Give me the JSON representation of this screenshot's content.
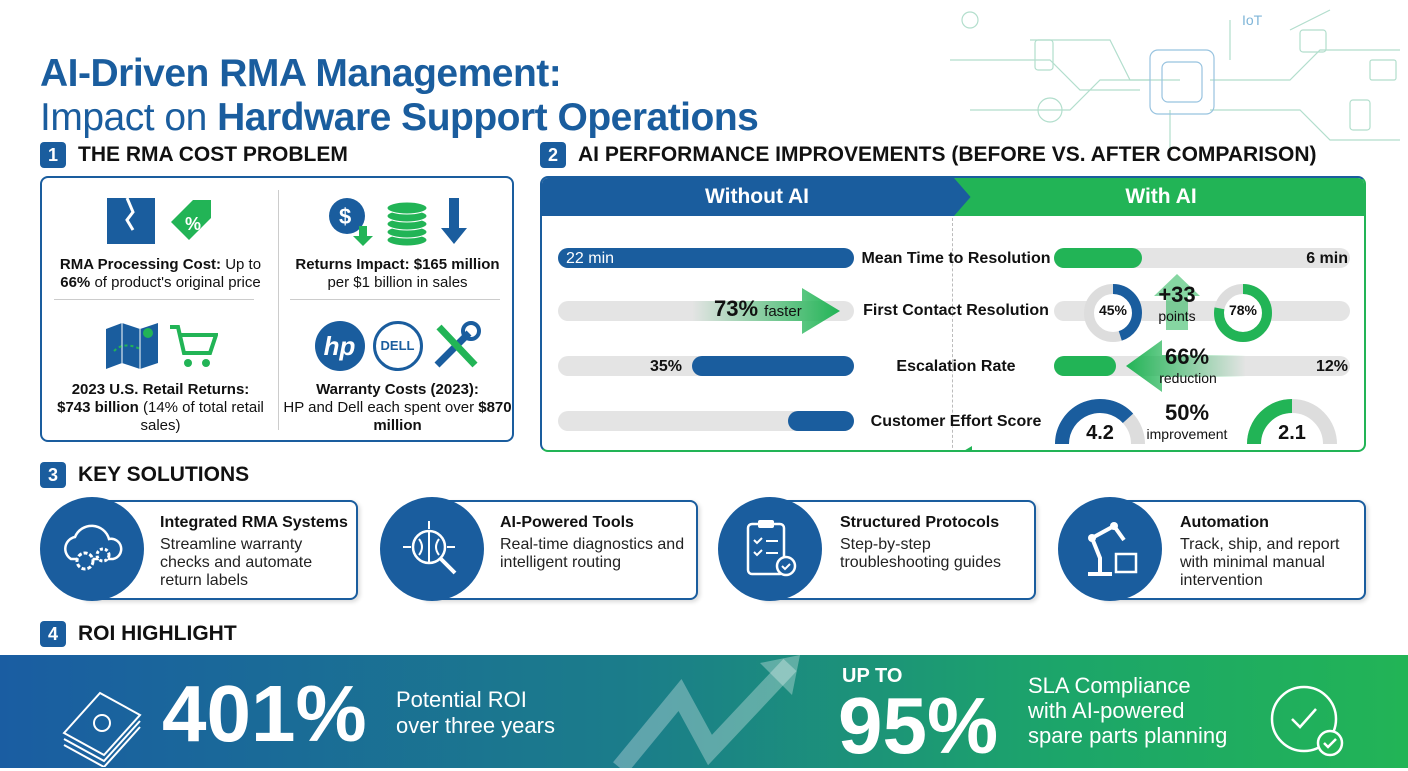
{
  "title": {
    "line1": "AI-Driven RMA Management:",
    "line2_light": "Impact on ",
    "line2_bold": "Hardware Support Operations"
  },
  "sections": {
    "s1": {
      "num": "1",
      "title": "THE RMA COST PROBLEM",
      "cells": [
        {
          "bold1": "RMA Processing Cost:",
          "text1": " Up to",
          "bold2": "66%",
          "text2": " of product's original price",
          "icons": [
            "broken-box-icon",
            "price-tag-icon"
          ]
        },
        {
          "bold1": "Returns Impact: $165 million",
          "text1": "",
          "bold2": "",
          "text2": "per $1 billion in sales",
          "icons": [
            "dollar-down-icon",
            "coin-stack-icon",
            "arrow-down-icon"
          ]
        },
        {
          "bold1": "2023 U.S. Retail Returns:",
          "text1": "",
          "bold2": "$743 billion",
          "text2": " (14% of total retail sales)",
          "icons": [
            "map-icon",
            "shopping-cart-icon"
          ]
        },
        {
          "bold1": "Warranty Costs (2023):",
          "text1": "",
          "bold2": "",
          "text2": "HP and Dell each spent over ",
          "bold3": "$870 million",
          "icons": [
            "hp-logo",
            "dell-logo",
            "tools-icon"
          ],
          "logos": [
            "hp",
            "DELL"
          ]
        }
      ]
    },
    "s2": {
      "num": "2",
      "title": "AI PERFORMANCE IMPROVEMENTS (BEFORE VS. AFTER COMPARISON)",
      "without": "Without AI",
      "with": "With AI",
      "rows": [
        {
          "metric": "Mean Time to Resolution",
          "before": "22 min",
          "after": "6 min",
          "before_value": 22,
          "after_value": 6
        },
        {
          "metric": "First Contact Resolution",
          "before": "45%",
          "after": "78%",
          "before_value": 45,
          "after_value": 78,
          "change": "+33",
          "change_unit": "points",
          "note": "73%",
          "note_unit": "faster"
        },
        {
          "metric": "Escalation Rate",
          "before": "35%",
          "after": "12%",
          "before_value": 35,
          "after_value": 12,
          "change": "66%",
          "change_unit": "reduction"
        },
        {
          "metric": "Customer Effort Score",
          "before": "4.2",
          "after": "2.1",
          "before_value": 4.2,
          "after_value": 2.1,
          "change": "50%",
          "change_unit": "improvement"
        }
      ],
      "colors": {
        "before": "#1a5d9e",
        "after": "#22b456"
      }
    },
    "s3": {
      "num": "3",
      "title": "KEY SOLUTIONS",
      "items": [
        {
          "title": "Integrated RMA Systems",
          "desc": "Streamline warranty checks and automate return labels",
          "icon": "cloud-gears-icon"
        },
        {
          "title": "AI-Powered Tools",
          "desc": "Real-time diagnostics and intelligent routing",
          "icon": "brain-chip-icon"
        },
        {
          "title": "Structured Protocols",
          "desc": "Step-by-step troubleshooting guides",
          "icon": "clipboard-checklist-icon"
        },
        {
          "title": "Automation",
          "desc": "Track, ship, and report with minimal manual intervention",
          "icon": "robot-arm-icon"
        }
      ]
    },
    "s4": {
      "num": "4",
      "title": "ROI HIGHLIGHT",
      "roi": "401%",
      "roi_desc1": "Potential ROI",
      "roi_desc2": "over three years",
      "upto": "UP TO",
      "sla": "95%",
      "sla_desc1": "SLA Compliance",
      "sla_desc2": "with AI-powered",
      "sla_desc3": "spare parts planning"
    }
  },
  "decor": {
    "iot": "IoT"
  }
}
